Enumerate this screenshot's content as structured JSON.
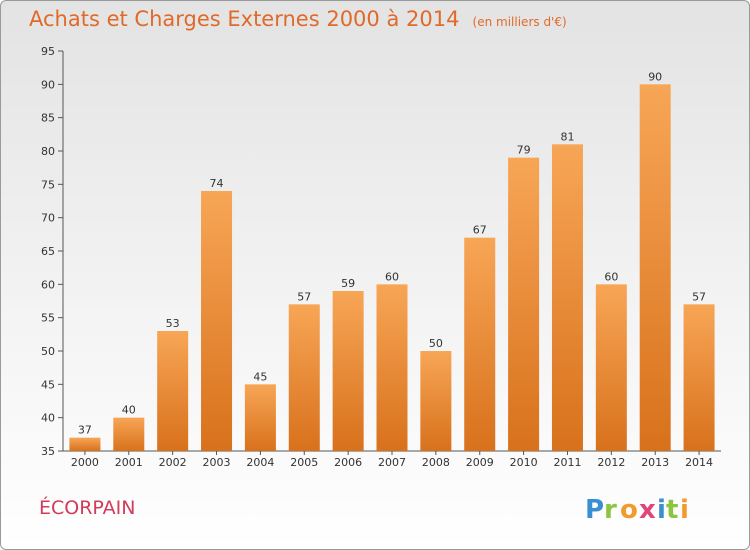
{
  "header": {
    "title": "Achats et Charges Externes 2000 à 2014",
    "unit": "(en milliers d'€)"
  },
  "footer": {
    "commune": "ÉCORPAIN",
    "logo_text": "Proxiti"
  },
  "colors": {
    "title": "#e06a2a",
    "commune": "#d23b5a",
    "bar_top": "#f7a656",
    "bar_bottom": "#d8711c"
  },
  "chart_data": {
    "type": "bar",
    "categories": [
      "2000",
      "2001",
      "2002",
      "2003",
      "2004",
      "2005",
      "2006",
      "2007",
      "2008",
      "2009",
      "2010",
      "2011",
      "2012",
      "2013",
      "2014"
    ],
    "values": [
      37,
      40,
      53,
      74,
      45,
      57,
      59,
      60,
      50,
      67,
      79,
      81,
      60,
      90,
      57
    ],
    "ylim": [
      35,
      95
    ],
    "yticks": [
      35,
      40,
      45,
      50,
      55,
      60,
      65,
      70,
      75,
      80,
      85,
      90,
      95
    ],
    "grid": false,
    "data_labels": true
  }
}
